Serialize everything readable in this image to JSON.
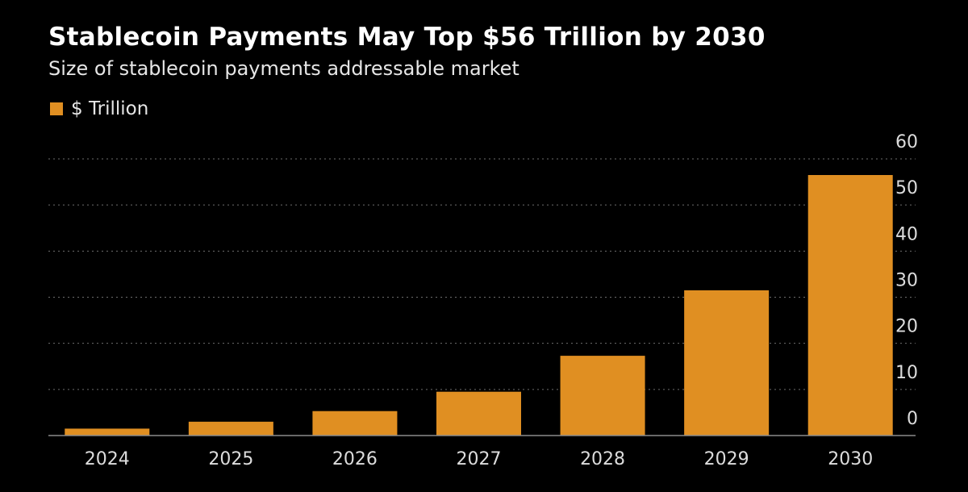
{
  "title": "Stablecoin Payments May Top $56 Trillion by 2030",
  "subtitle": "Size of stablecoin payments addressable market",
  "legend": {
    "label": "$ Trillion",
    "color": "#e08f22"
  },
  "chart_data": {
    "type": "bar",
    "title": "Stablecoin Payments May Top $56 Trillion by 2030",
    "subtitle": "Size of stablecoin payments addressable market",
    "xlabel": "",
    "ylabel": "",
    "categories": [
      "2024",
      "2025",
      "2026",
      "2027",
      "2028",
      "2029",
      "2030"
    ],
    "series": [
      {
        "name": "$ Trillion",
        "values": [
          1.5,
          3,
          5.3,
          9.5,
          17.3,
          31.5,
          56.5
        ]
      }
    ],
    "ylim": [
      0,
      60
    ],
    "yticks": [
      0,
      10,
      20,
      30,
      40,
      50,
      60
    ],
    "grid": true,
    "legend_position": "top-left",
    "y_axis_side": "right",
    "bar_color": "#e08f22"
  }
}
